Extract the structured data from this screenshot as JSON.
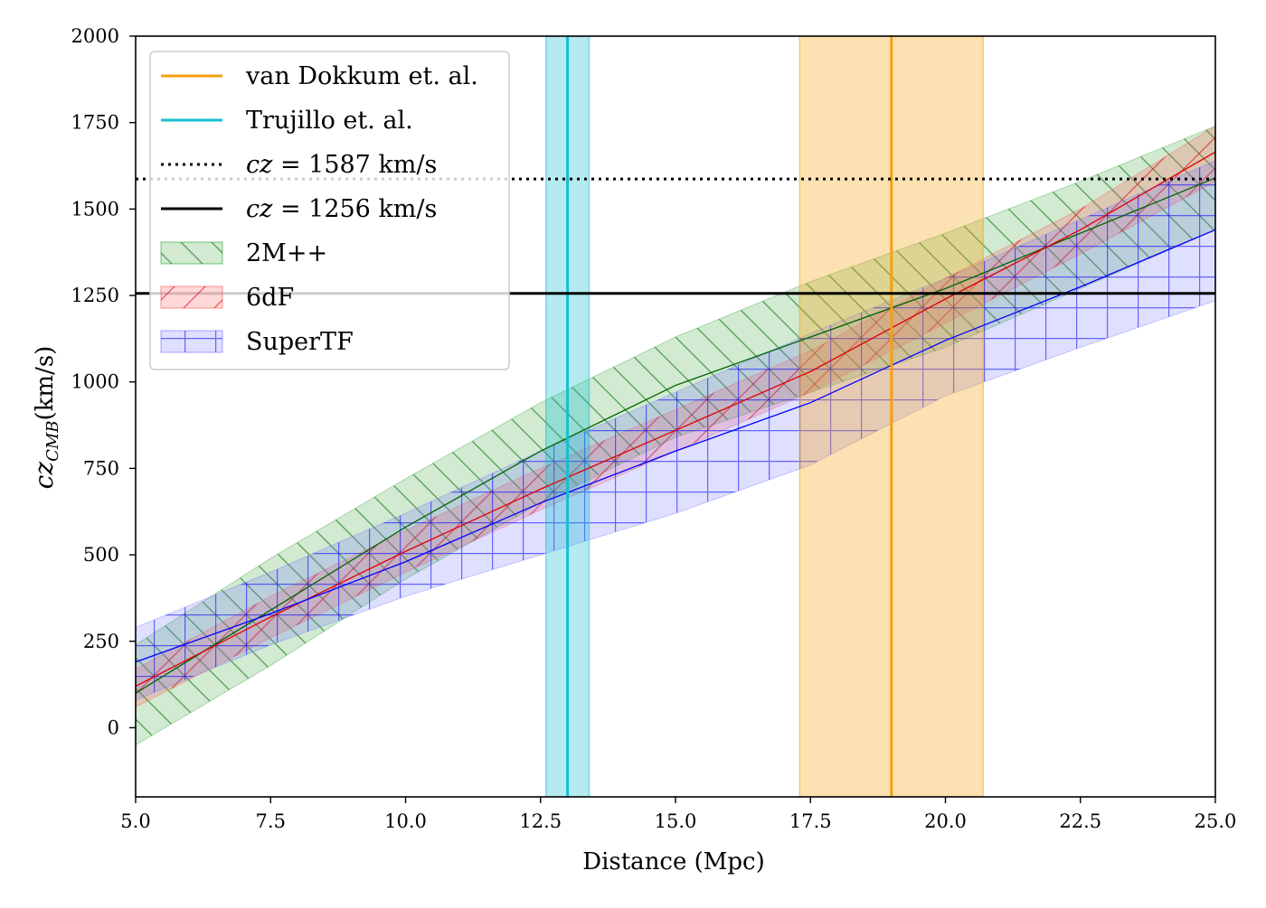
{
  "chart_data": {
    "type": "line",
    "xlabel": "Distance (Mpc)",
    "ylabel_main": "cz",
    "ylabel_sub": "CMB",
    "ylabel_unit": "(km/s)",
    "xlim": [
      5,
      25
    ],
    "ylim": [
      -200,
      2000
    ],
    "xticks": [
      5,
      7.5,
      10,
      12.5,
      15,
      17.5,
      20,
      22.5,
      25
    ],
    "xtick_labels": [
      "5.0",
      "7.5",
      "10.0",
      "12.5",
      "15.0",
      "17.5",
      "20.0",
      "22.5",
      "25.0"
    ],
    "yticks": [
      0,
      250,
      500,
      750,
      1000,
      1250,
      1500,
      1750,
      2000
    ],
    "ytick_labels": [
      "0",
      "250",
      "500",
      "750",
      "1000",
      "1250",
      "1500",
      "1750",
      "2000"
    ],
    "grid": false,
    "legend_position": "top-left",
    "vertical_markers": [
      {
        "name": "van Dokkum et. al.",
        "x": 19.0,
        "x_low": 17.3,
        "x_high": 20.7,
        "color": "#f5a10f"
      },
      {
        "name": "Trujillo et. al.",
        "x": 13.0,
        "x_low": 12.6,
        "x_high": 13.4,
        "color": "#17becf"
      }
    ],
    "horizontal_lines": [
      {
        "prefix": "cz",
        "label": " = 1587 km/s",
        "y": 1587,
        "style": "dotted",
        "color": "#000000"
      },
      {
        "prefix": "cz",
        "label": " = 1256 km/s",
        "y": 1256,
        "style": "solid",
        "color": "#000000"
      }
    ],
    "x": [
      5,
      7.5,
      10,
      12.5,
      15,
      17.5,
      20,
      22.5,
      25
    ],
    "series": [
      {
        "name": "2M++",
        "color": "#2ca02c",
        "line_color": "#006400",
        "hatch": "diagonal-back",
        "values": [
          100,
          340,
          580,
          800,
          990,
          1130,
          1270,
          1430,
          1590
        ],
        "lower": [
          -50,
          180,
          430,
          650,
          840,
          970,
          1100,
          1270,
          1440
        ],
        "upper": [
          240,
          490,
          720,
          940,
          1130,
          1290,
          1430,
          1580,
          1740
        ]
      },
      {
        "name": "6dF",
        "color": "#ff4d4d",
        "line_color": "#e00000",
        "hatch": "diagonal-forward",
        "values": [
          120,
          320,
          510,
          690,
          860,
          1030,
          1240,
          1440,
          1665
        ],
        "lower": [
          60,
          260,
          450,
          630,
          800,
          970,
          1170,
          1370,
          1580
        ],
        "upper": [
          170,
          380,
          570,
          750,
          920,
          1090,
          1300,
          1500,
          1740
        ]
      },
      {
        "name": "SuperTF",
        "color": "#6f6fff",
        "line_color": "#0000ff",
        "hatch": "grid",
        "values": [
          190,
          330,
          480,
          650,
          800,
          940,
          1120,
          1275,
          1440
        ],
        "lower": [
          80,
          240,
          380,
          500,
          620,
          760,
          960,
          1100,
          1235
        ],
        "upper": [
          290,
          450,
          620,
          800,
          970,
          1140,
          1300,
          1470,
          1640
        ]
      }
    ]
  }
}
